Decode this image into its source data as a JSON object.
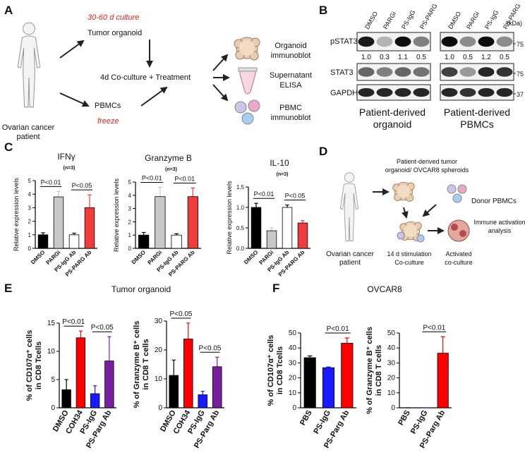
{
  "panels": {
    "A": {
      "letter": "A",
      "patient": [
        "Ovarian cancer",
        "patient"
      ],
      "culture": "30-60 d culture",
      "organoid": "Tumor organoid",
      "pbmcs": "PBMCs",
      "freeze": "freeze",
      "coculture": "4d Co-culture + Treatment",
      "out1": [
        "Organoid",
        "immunoblot"
      ],
      "out2": [
        "Supernatant",
        "ELISA"
      ],
      "out3": [
        "PBMC",
        "immunoblot"
      ]
    },
    "B": {
      "letter": "B",
      "lanes": [
        "DMSO",
        "PARGi",
        "PS-IgG",
        "PS-PARG"
      ],
      "kda": "(kDa)",
      "rows": [
        "pSTAT3",
        "STAT3",
        "GAPDH"
      ],
      "markers": [
        "75",
        "75",
        "37"
      ],
      "quant_left": [
        "1.0",
        "0.3",
        "1.1",
        "0.5"
      ],
      "quant_right": [
        "1.0",
        "0.5",
        "1.2",
        "0.5"
      ],
      "caption_left": [
        "Patient-derived",
        "organoid"
      ],
      "caption_right": [
        "Patient-derived",
        "PBMCs"
      ]
    },
    "C": {
      "letter": "C"
    },
    "D": {
      "letter": "D",
      "source": [
        "Patient-derived tumor",
        "organoid/ OVCAR8 spheroids"
      ],
      "donor": "Donor PBMCs",
      "patient": [
        "Ovarian cancer",
        "patient"
      ],
      "stim": [
        "14 d stimulation",
        "Co-culture"
      ],
      "activated": [
        "Activated",
        "co-culture"
      ],
      "analysis": [
        "Immune activation",
        "analysis"
      ]
    },
    "E": {
      "letter": "E",
      "title": "Tumor organoid"
    },
    "F": {
      "letter": "F",
      "title": "OVCAR8"
    }
  },
  "chart_data": [
    {
      "type": "bar",
      "title": "IFNγ",
      "y_label": [
        "Relative expression levels"
      ],
      "categories": [
        "DMSO",
        "PARGi",
        "PS-IgG Ab",
        "PS-PARG Ab"
      ],
      "values": [
        1,
        3.8,
        1,
        3.0
      ],
      "errors": [
        0.15,
        0.4,
        0.12,
        0.95
      ],
      "colors": [
        "#000000",
        "#c8c8c8",
        "#ffffff",
        "#f03c3c"
      ],
      "ylim": [
        0,
        5
      ],
      "yticks": [
        0,
        1,
        2,
        3,
        4,
        5
      ],
      "note": "(n=3)",
      "comparisons": [
        {
          "groups": [
            "DMSO",
            "PARGi"
          ],
          "label": "P<0.01"
        },
        {
          "groups": [
            "PS-IgG Ab",
            "PS-PARG Ab"
          ],
          "label": "P<0.05"
        }
      ]
    },
    {
      "type": "bar",
      "title": "Granzyme B",
      "y_label": [
        "Relative expression levels"
      ],
      "categories": [
        "DMSO",
        "PARGi",
        "PS-IgG Ab",
        "PS-PARG Ab"
      ],
      "values": [
        1,
        3.9,
        1,
        3.9
      ],
      "errors": [
        0.2,
        0.7,
        0.1,
        0.65
      ],
      "colors": [
        "#000000",
        "#c8c8c8",
        "#ffffff",
        "#f03c3c"
      ],
      "ylim": [
        0,
        5
      ],
      "yticks": [
        0,
        1,
        2,
        3,
        4,
        5
      ],
      "note": "(n=3)",
      "comparisons": [
        {
          "groups": [
            "DMSO",
            "PARGi"
          ],
          "label": "P<0.01"
        },
        {
          "groups": [
            "PS-IgG Ab",
            "PS-PARG Ab"
          ],
          "label": "P<0.01"
        }
      ]
    },
    {
      "type": "bar",
      "title": "IL-10",
      "y_label": [
        "Relative expression levels"
      ],
      "categories": [
        "DMSO",
        "PARGi",
        "PS-IgG Ab",
        "PS-PARG Ab"
      ],
      "values": [
        1.0,
        0.43,
        1.0,
        0.62
      ],
      "errors": [
        0.1,
        0.07,
        0.06,
        0.06
      ],
      "colors": [
        "#000000",
        "#c8c8c8",
        "#ffffff",
        "#f03c3c"
      ],
      "ylim": [
        0,
        1.5
      ],
      "yticks": [
        {
          "value": 0,
          "label": "0.0"
        },
        0.5,
        {
          "value": 1,
          "label": "1.0"
        },
        1.5
      ],
      "note": "(n=3)",
      "comparisons": [
        {
          "groups": [
            "DMSO",
            "PARGi"
          ],
          "label": "P<0.01"
        },
        {
          "groups": [
            "PS-IgG Ab",
            "PS-PARG Ab"
          ],
          "label": "P<0.05"
        }
      ]
    },
    {
      "type": "bar",
      "y_label": [
        "% of CD107α⁺ cells",
        "in CD8 Tcells"
      ],
      "categories": [
        "DMSO",
        "COH34",
        "PS-IgG",
        "PS-Parg Ab"
      ],
      "values": [
        3.2,
        12.4,
        2.5,
        8.3
      ],
      "errors": [
        1.8,
        1.2,
        1.4,
        4.3
      ],
      "colors": [
        "#000000",
        "#ff0000",
        "#1a1aff",
        "#7a1fa2"
      ],
      "ylim": [
        0,
        15
      ],
      "yticks": [
        0,
        5,
        10,
        15
      ],
      "comparisons": [
        {
          "groups": [
            "DMSO",
            "COH34"
          ],
          "label": "P<0.01"
        },
        {
          "groups": [
            "PS-IgG",
            "PS-Parg Ab"
          ],
          "label": "P<0.05"
        }
      ]
    },
    {
      "type": "bar",
      "y_label": [
        "% of Granzyme B⁺ cells",
        "in CD8 T cells"
      ],
      "categories": [
        "DMSO",
        "COH34",
        "PS-IgG",
        "PS-Parg Ab"
      ],
      "values": [
        11.2,
        23.8,
        4.5,
        14.2
      ],
      "errors": [
        5.3,
        5.5,
        1.2,
        3.3
      ],
      "colors": [
        "#000000",
        "#ff0000",
        "#1a1aff",
        "#7a1fa2"
      ],
      "ylim": [
        0,
        30
      ],
      "yticks": [
        0,
        10,
        20,
        30
      ],
      "comparisons": [
        {
          "groups": [
            "DMSO",
            "COH34"
          ],
          "label": "P<0.05"
        },
        {
          "groups": [
            "PS-IgG",
            "PS-Parg Ab"
          ],
          "label": "P<0.05"
        }
      ]
    },
    {
      "type": "bar",
      "y_label": [
        "% of CD107α⁺ cells",
        "in CD8 Tcells"
      ],
      "categories": [
        "PBS",
        "PS-IgG",
        "PS-Parg Ab"
      ],
      "values": [
        33.5,
        26.8,
        43.2
      ],
      "errors": [
        1.2,
        0.5,
        3.5
      ],
      "colors": [
        "#000000",
        "#1a1aff",
        "#ff0000"
      ],
      "ylim": [
        0,
        50
      ],
      "yticks": [
        0,
        10,
        20,
        30,
        40,
        50
      ],
      "comparisons": [
        {
          "groups": [
            "PS-IgG",
            "PS-Parg Ab"
          ],
          "label": "P<0.01"
        }
      ]
    },
    {
      "type": "bar",
      "y_label": [
        "% of Granzyme B⁺ cells",
        "in CD8 T cells"
      ],
      "categories": [
        "PBS",
        "PS-IgG",
        "PS-Parg Ab"
      ],
      "values": [
        0,
        0,
        36.5
      ],
      "errors": [
        0,
        0,
        11
      ],
      "colors": [
        "#000000",
        "#1a1aff",
        "#ff0000"
      ],
      "ylim": [
        0,
        50
      ],
      "yticks": [
        0,
        10,
        20,
        30,
        40,
        50
      ],
      "comparisons": [
        {
          "groups": [
            "PS-IgG",
            "PS-Parg Ab"
          ],
          "label": "P<0.01"
        }
      ]
    }
  ]
}
